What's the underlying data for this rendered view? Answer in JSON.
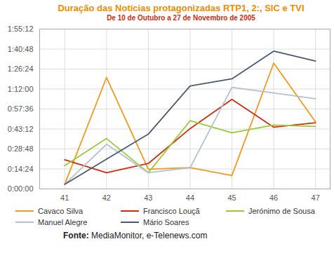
{
  "chart_data": {
    "type": "line",
    "title": "Duração das Notícias protagonizadas RTP1, 2:, SIC e TVI",
    "subtitle": "De 10 de Outubro a 27 de Novembro de 2005",
    "caption": "Fonte: MediaMonitor, e-Telenews.com",
    "x": [
      41,
      42,
      43,
      44,
      45,
      46,
      47
    ],
    "xlim": [
      40.4,
      47.35
    ],
    "xticks": [
      41,
      42,
      43,
      44,
      45,
      46,
      47
    ],
    "ylim": [
      0,
      6912
    ],
    "yticks": [
      {
        "value": 0,
        "label": "0:00:00"
      },
      {
        "value": 864,
        "label": "0:14:24"
      },
      {
        "value": 1728,
        "label": "0:28:48"
      },
      {
        "value": 2592,
        "label": "0:43:12"
      },
      {
        "value": 3456,
        "label": "0:57:36"
      },
      {
        "value": 4320,
        "label": "1:12:00"
      },
      {
        "value": 5184,
        "label": "1:26:24"
      },
      {
        "value": 6048,
        "label": "1:40:48"
      },
      {
        "value": 6912,
        "label": "1:55:12"
      }
    ],
    "grid": true,
    "legend": "bottom",
    "series": [
      {
        "name": "Cavaco Silva",
        "color": "#f39a1e",
        "values": [
          200,
          4820,
          850,
          920,
          580,
          5440,
          2900
        ]
      },
      {
        "name": "Francisco Louçã",
        "color": "#d62a0a",
        "values": [
          1260,
          700,
          1100,
          2610,
          3870,
          2670,
          2860
        ]
      },
      {
        "name": "Jerónimo de Sousa",
        "color": "#99cc33",
        "values": [
          1010,
          2180,
          700,
          2950,
          2430,
          2760,
          2700
        ]
      },
      {
        "name": "Manuel Alegre",
        "color": "#b4c0d2",
        "values": [
          200,
          1930,
          700,
          920,
          4390,
          4150,
          3900
        ]
      },
      {
        "name": "Mário Soares",
        "color": "#4a5a72",
        "values": [
          200,
          1290,
          2370,
          4450,
          4760,
          5960,
          5530
        ]
      }
    ]
  }
}
